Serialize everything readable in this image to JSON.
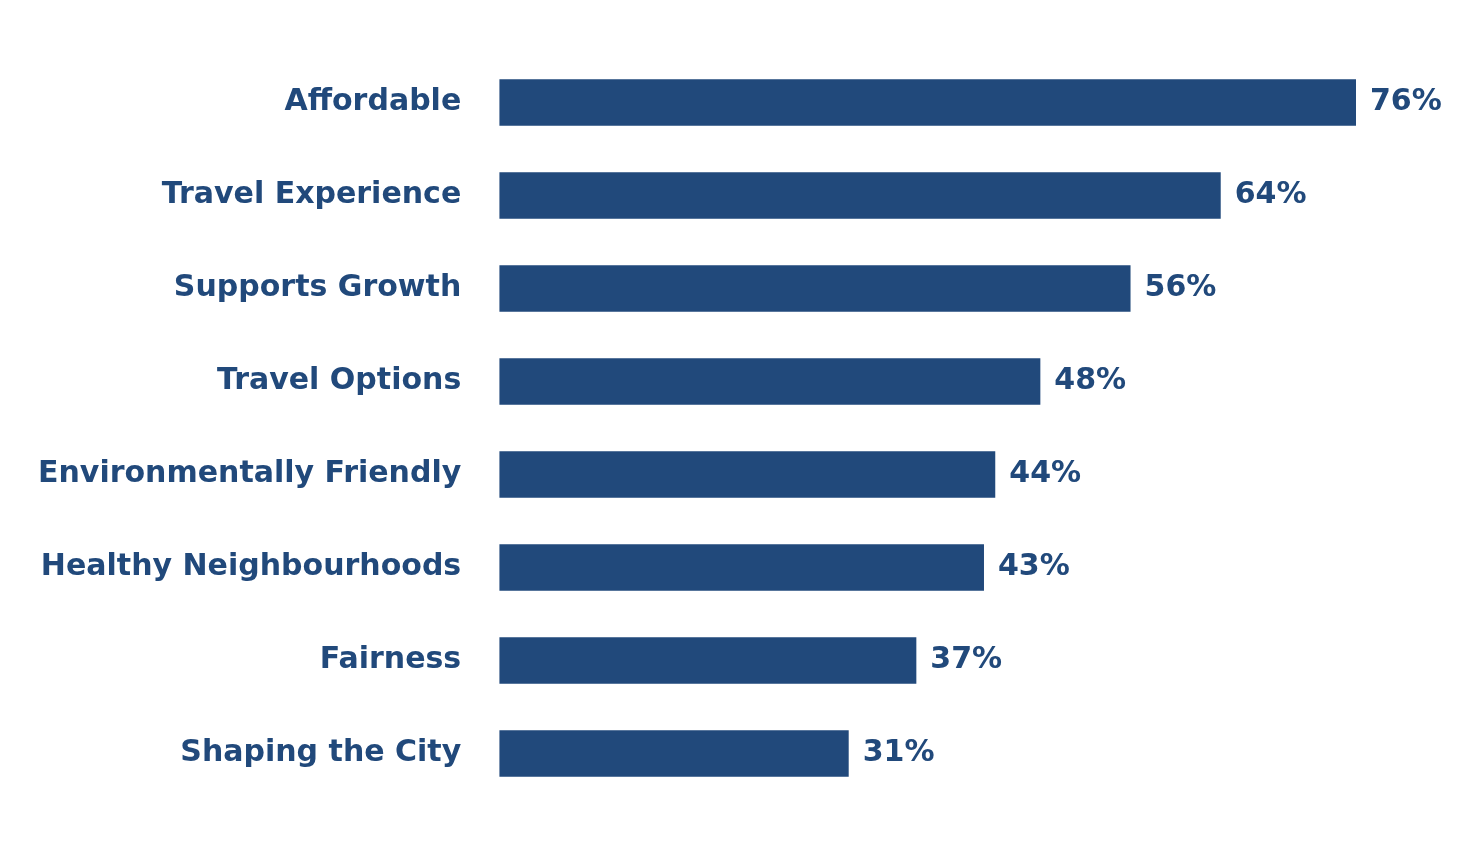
{
  "chart_data": {
    "type": "bar",
    "orientation": "horizontal",
    "categories": [
      "Affordable",
      "Travel Experience",
      "Supports Growth",
      "Travel Options",
      "Environmentally Friendly",
      "Healthy Neighbourhoods",
      "Fairness",
      "Shaping the City"
    ],
    "values": [
      76,
      64,
      56,
      48,
      44,
      43,
      37,
      31
    ],
    "value_labels": [
      "76%",
      "64%",
      "56%",
      "48%",
      "44%",
      "43%",
      "37%",
      "31%"
    ],
    "color": "#21497b"
  }
}
